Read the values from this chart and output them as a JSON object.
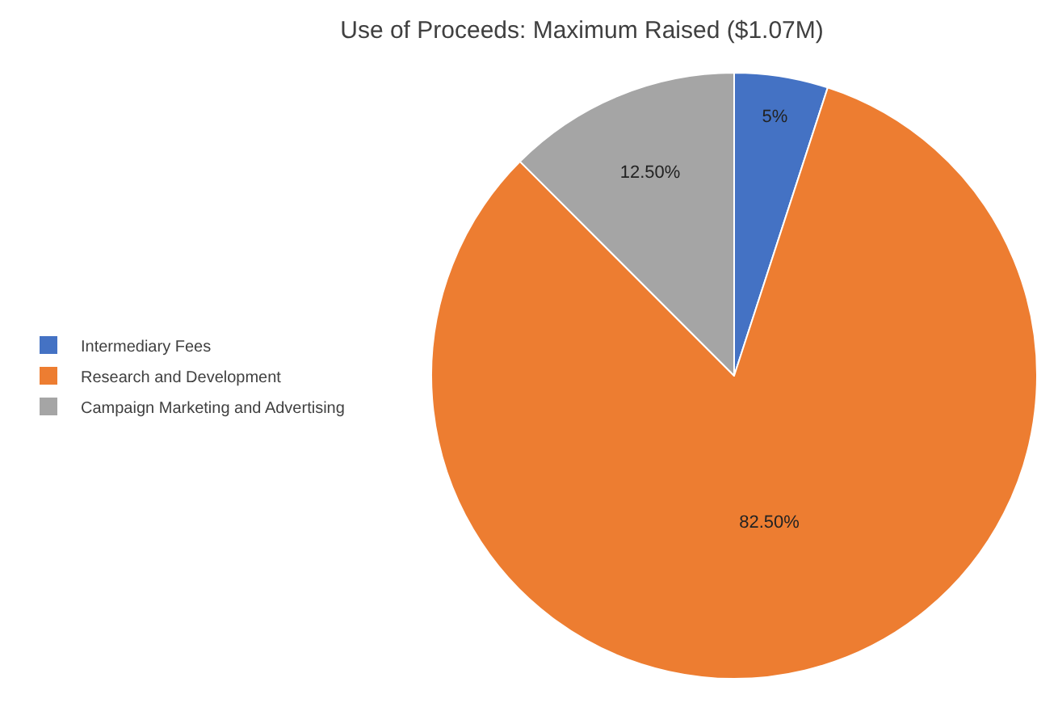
{
  "chart_data": {
    "type": "pie",
    "title": "Use of Proceeds: Maximum Raised ($1.07M)",
    "categories": [
      "Intermediary Fees",
      "Research and Development",
      "Campaign Marketing and Advertising"
    ],
    "values": [
      5,
      82.5,
      12.5
    ],
    "value_labels": [
      "5%",
      "82.50%",
      "12.50%"
    ],
    "colors": [
      "#4472c4",
      "#ed7d31",
      "#a5a5a5"
    ],
    "legend": "left"
  }
}
